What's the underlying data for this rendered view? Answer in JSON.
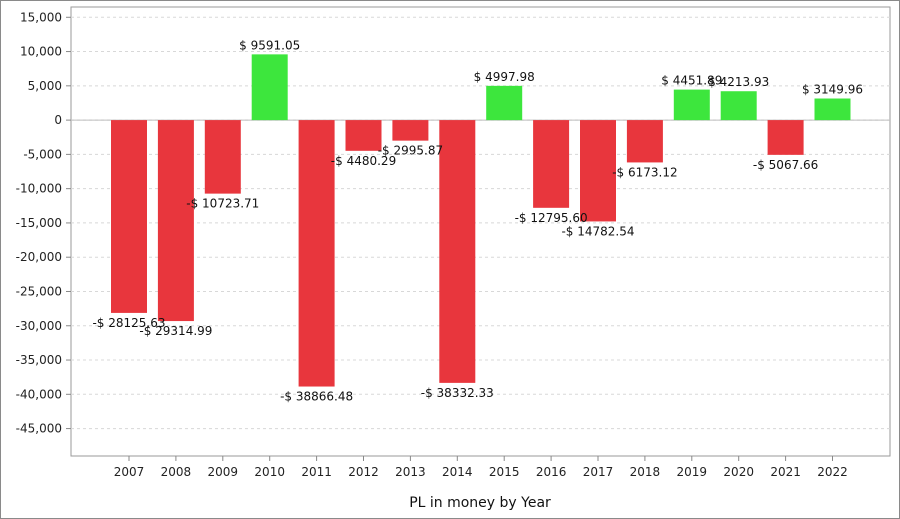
{
  "chart_data": {
    "type": "bar",
    "title": "",
    "xlabel": "PL in money by Year",
    "ylabel": "",
    "categories": [
      "2007",
      "2008",
      "2009",
      "2010",
      "2011",
      "2012",
      "2013",
      "2014",
      "2015",
      "2016",
      "2017",
      "2018",
      "2019",
      "2020",
      "2021",
      "2022"
    ],
    "values": [
      -28125.63,
      -29314.99,
      -10723.71,
      9591.05,
      -38866.48,
      -4480.29,
      -2995.87,
      -38332.33,
      4997.98,
      -12795.6,
      -14782.54,
      -6173.12,
      4451.89,
      4213.93,
      -5067.66,
      3149.96
    ],
    "value_labels": [
      "-$ 28125.63",
      "-$ 29314.99",
      "-$ 10723.71",
      "$ 9591.05",
      "-$ 38866.48",
      "-$ 4480.29",
      "-$ 2995.87",
      "-$ 38332.33",
      "$ 4997.98",
      "-$ 12795.60",
      "-$ 14782.54",
      "-$ 6173.12",
      "$ 4451.89",
      "$ 4213.93",
      "-$ 5067.66",
      "$ 3149.96"
    ],
    "ylim": [
      -49000,
      16500
    ],
    "yticks": [
      15000,
      10000,
      5000,
      0,
      -5000,
      -10000,
      -15000,
      -20000,
      -25000,
      -30000,
      -35000,
      -40000,
      -45000
    ],
    "ytick_labels": [
      "15,000",
      "10,000",
      "5,000",
      "0",
      "-5,000",
      "-10,000",
      "-15,000",
      "-20,000",
      "-25,000",
      "-30,000",
      "-35,000",
      "-40,000",
      "-45,000"
    ],
    "grid": true,
    "colors": {
      "positive": "#3de63d",
      "negative": "#e8363d",
      "grid": "#d8d8d8",
      "axis": "#888888"
    }
  }
}
